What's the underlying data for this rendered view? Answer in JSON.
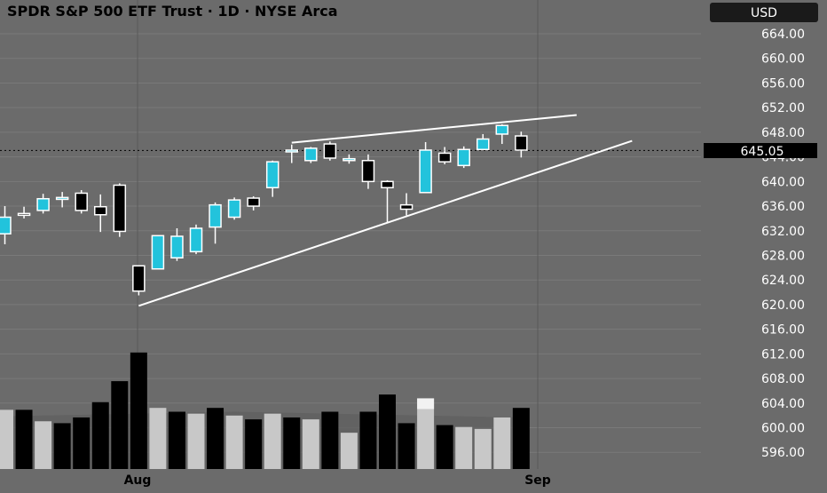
{
  "header": {
    "title": "SPDR S&P 500 ETF Trust · 1D · NYSE Arca",
    "currency": "USD"
  },
  "last_price_label": "645.05",
  "colors": {
    "background": "#6b6b6b",
    "grid": "#7a7a7a",
    "candle_up": "#22c3dc",
    "candle_down": "#000000",
    "volume_light": "#c8c8c8",
    "volume_dark": "#000000",
    "volume_highlight": "#f2f2f2",
    "trendline": "#ffffff",
    "axis_text": "#ffffff",
    "currency_badge_bg": "#1a1a1a"
  },
  "chart_data": {
    "type": "candlestick",
    "title": "SPDR S&P 500 ETF Trust · 1D · NYSE Arca",
    "ylim": [
      594,
      666
    ],
    "y_ticks": [
      "664.00",
      "660.00",
      "656.00",
      "652.00",
      "648.00",
      "644.00",
      "640.00",
      "636.00",
      "632.00",
      "628.00",
      "624.00",
      "620.00",
      "616.00",
      "612.00",
      "608.00",
      "604.00",
      "600.00",
      "596.00"
    ],
    "x_ticks": [
      "Aug",
      "Sep"
    ],
    "grid": true,
    "candles": [
      {
        "open": 631.5,
        "high": 636.0,
        "low": 629.8,
        "close": 634.2,
        "up": true
      },
      {
        "open": 634.6,
        "high": 635.9,
        "low": 634.0,
        "close": 634.8,
        "up": false
      },
      {
        "open": 635.3,
        "high": 638.0,
        "low": 634.8,
        "close": 637.2,
        "up": true
      },
      {
        "open": 637.1,
        "high": 638.3,
        "low": 635.8,
        "close": 637.4,
        "up": true
      },
      {
        "open": 638.1,
        "high": 638.6,
        "low": 634.8,
        "close": 635.3,
        "up": false
      },
      {
        "open": 635.9,
        "high": 637.9,
        "low": 631.8,
        "close": 634.6,
        "up": false
      },
      {
        "open": 639.4,
        "high": 639.7,
        "low": 631.0,
        "close": 631.9,
        "up": false
      },
      {
        "open": 626.3,
        "high": 626.3,
        "low": 621.5,
        "close": 622.2,
        "up": false
      },
      {
        "open": 625.8,
        "high": 631.2,
        "low": 625.8,
        "close": 631.2,
        "up": true
      },
      {
        "open": 627.6,
        "high": 632.4,
        "low": 627.1,
        "close": 631.1,
        "up": true
      },
      {
        "open": 628.6,
        "high": 633.0,
        "low": 628.2,
        "close": 632.4,
        "up": true
      },
      {
        "open": 632.6,
        "high": 636.6,
        "low": 629.9,
        "close": 636.2,
        "up": true
      },
      {
        "open": 634.2,
        "high": 637.4,
        "low": 633.8,
        "close": 637.0,
        "up": true
      },
      {
        "open": 637.3,
        "high": 637.6,
        "low": 635.3,
        "close": 636.0,
        "up": false
      },
      {
        "open": 639.0,
        "high": 643.4,
        "low": 637.5,
        "close": 643.2,
        "up": true
      },
      {
        "open": 645.1,
        "high": 646.0,
        "low": 643.0,
        "close": 645.1,
        "up": true
      },
      {
        "open": 643.4,
        "high": 645.6,
        "low": 643.0,
        "close": 645.4,
        "up": true
      },
      {
        "open": 646.1,
        "high": 646.5,
        "low": 643.4,
        "close": 643.8,
        "up": false
      },
      {
        "open": 643.4,
        "high": 644.4,
        "low": 642.9,
        "close": 643.7,
        "up": true
      },
      {
        "open": 643.4,
        "high": 644.4,
        "low": 638.8,
        "close": 640.0,
        "up": false
      },
      {
        "open": 640.0,
        "high": 640.2,
        "low": 633.2,
        "close": 639.0,
        "up": false
      },
      {
        "open": 636.2,
        "high": 638.1,
        "low": 634.5,
        "close": 635.5,
        "up": false
      },
      {
        "open": 638.2,
        "high": 646.4,
        "low": 638.1,
        "close": 645.1,
        "up": true
      },
      {
        "open": 644.6,
        "high": 645.6,
        "low": 642.8,
        "close": 643.2,
        "up": false
      },
      {
        "open": 642.6,
        "high": 645.7,
        "low": 642.2,
        "close": 645.2,
        "up": true
      },
      {
        "open": 645.2,
        "high": 647.7,
        "low": 645.1,
        "close": 646.9,
        "up": true
      },
      {
        "open": 647.7,
        "high": 649.3,
        "low": 646.1,
        "close": 649.1,
        "up": true
      },
      {
        "open": 647.4,
        "high": 648.1,
        "low": 643.9,
        "close": 645.1,
        "up": false
      }
    ],
    "volume": [
      {
        "value": 0.31,
        "shade": "light"
      },
      {
        "value": 0.31,
        "shade": "dark"
      },
      {
        "value": 0.25,
        "shade": "light"
      },
      {
        "value": 0.24,
        "shade": "dark"
      },
      {
        "value": 0.27,
        "shade": "dark"
      },
      {
        "value": 0.35,
        "shade": "dark"
      },
      {
        "value": 0.46,
        "shade": "dark"
      },
      {
        "value": 0.61,
        "shade": "dark"
      },
      {
        "value": 0.32,
        "shade": "light"
      },
      {
        "value": 0.3,
        "shade": "dark"
      },
      {
        "value": 0.29,
        "shade": "light"
      },
      {
        "value": 0.32,
        "shade": "dark"
      },
      {
        "value": 0.28,
        "shade": "light"
      },
      {
        "value": 0.26,
        "shade": "dark"
      },
      {
        "value": 0.29,
        "shade": "light"
      },
      {
        "value": 0.27,
        "shade": "dark"
      },
      {
        "value": 0.26,
        "shade": "light"
      },
      {
        "value": 0.3,
        "shade": "dark"
      },
      {
        "value": 0.19,
        "shade": "light"
      },
      {
        "value": 0.3,
        "shade": "dark"
      },
      {
        "value": 0.39,
        "shade": "dark"
      },
      {
        "value": 0.24,
        "shade": "dark"
      },
      {
        "value": 0.37,
        "shade": "highlight"
      },
      {
        "value": 0.23,
        "shade": "dark"
      },
      {
        "value": 0.22,
        "shade": "light"
      },
      {
        "value": 0.21,
        "shade": "light"
      },
      {
        "value": 0.27,
        "shade": "light"
      },
      {
        "value": 0.32,
        "shade": "dark"
      }
    ],
    "trendlines": [
      {
        "name": "upper",
        "from": {
          "candle": 15,
          "price": 646.3
        },
        "to": {
          "candle": 29.9,
          "price": 650.8
        }
      },
      {
        "name": "lower",
        "from": {
          "candle": 7,
          "price": 619.8
        },
        "to": {
          "candle": 32.8,
          "price": 646.6
        }
      }
    ],
    "last_price": 645.05
  }
}
